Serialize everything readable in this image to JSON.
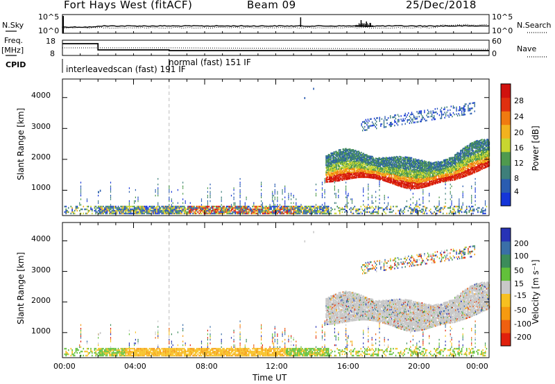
{
  "header": {
    "title": "Fort Hays West (fitACF)",
    "beam": "Beam 09",
    "date": "25/Dec/2018"
  },
  "left_labels": {
    "nsky": "N.Sky",
    "freq_line1": "Freq.",
    "freq_line2": "[MHz]",
    "cpid": "CPID"
  },
  "right_labels": {
    "nsearch": "N.Search",
    "nave": "Nave"
  },
  "noise_panel": {
    "left_ticks": [
      "10^5",
      "10^0"
    ],
    "right_ticks": [
      "10^5",
      "10^0"
    ]
  },
  "freq_panel": {
    "left_ticks": [
      "18",
      "8"
    ],
    "right_ticks": [
      "60",
      "0"
    ]
  },
  "cpid": {
    "mode_1": "interleavedscan (fast) 191 IF",
    "mode_2": "normal (fast) 151 IF"
  },
  "chart_data": [
    {
      "type": "heatmap",
      "name": "power",
      "ylabel": "Slant Range [km]",
      "yticks": [
        "1000",
        "2000",
        "3000",
        "4000"
      ],
      "ylim": [
        180,
        4600
      ],
      "xlim": [
        0,
        24
      ],
      "colorbar_label": "Power [dB]",
      "colorbar_ticks": [
        "4",
        "8",
        "12",
        "16",
        "20",
        "24",
        "28"
      ],
      "colorbar_colors": [
        "#1535d8",
        "#2a5cb0",
        "#3e7f7a",
        "#4f9a4e",
        "#c8d630",
        "#f2b21e",
        "#f07a10",
        "#e0300f",
        "#d0120e"
      ]
    },
    {
      "type": "heatmap",
      "name": "velocity",
      "ylabel": "Slant Range [km]",
      "yticks": [
        "1000",
        "2000",
        "3000",
        "4000"
      ],
      "ylim": [
        180,
        4600
      ],
      "xlim": [
        0,
        24
      ],
      "colorbar_label": "Velocity [m s⁻¹]",
      "colorbar_ticks": [
        "200",
        "100",
        "50",
        "15",
        "-15",
        "-50",
        "-100",
        "-200"
      ],
      "colorbar_colors": [
        "#2733b6",
        "#3a6fa8",
        "#3c8c5a",
        "#62c03a",
        "#c8c8c8",
        "#f7c020",
        "#f59a10",
        "#ef6010",
        "#e0200c"
      ],
      "xlabel": "Time UT",
      "xticks": [
        "00:00",
        "04:00",
        "08:00",
        "12:00",
        "16:00",
        "20:00",
        "00:00"
      ]
    }
  ]
}
